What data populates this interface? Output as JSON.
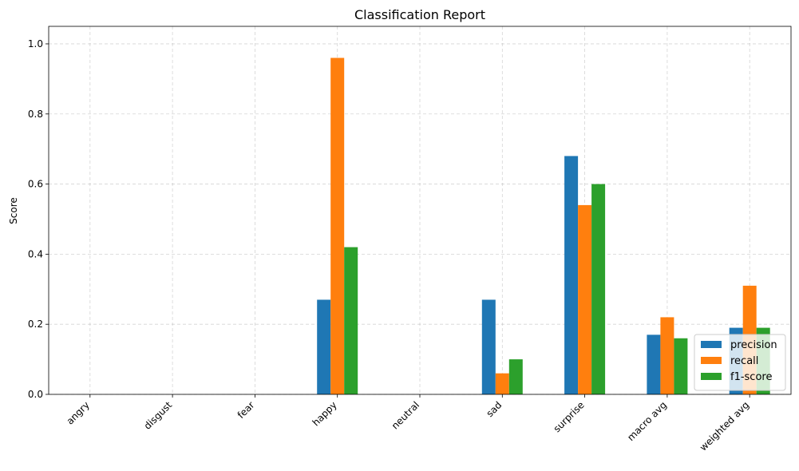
{
  "chart_data": {
    "type": "bar",
    "title": "Classification Report",
    "xlabel": "",
    "ylabel": "Score",
    "ylim": [
      0,
      1.05
    ],
    "yticks": [
      "0.0",
      "0.2",
      "0.4",
      "0.6",
      "0.8",
      "1.0"
    ],
    "grid": true,
    "legend_position": "lower-right",
    "categories": [
      "angry",
      "disgust",
      "fear",
      "happy",
      "neutral",
      "sad",
      "surprise",
      "macro avg",
      "weighted avg"
    ],
    "series": [
      {
        "name": "precision",
        "color": "#1f77b4",
        "values": [
          0,
          0,
          0,
          0.27,
          0,
          0.27,
          0.68,
          0.17,
          0.19
        ]
      },
      {
        "name": "recall",
        "color": "#ff7f0e",
        "values": [
          0,
          0,
          0,
          0.96,
          0,
          0.06,
          0.54,
          0.22,
          0.31
        ]
      },
      {
        "name": "f1-score",
        "color": "#2ca02c",
        "values": [
          0,
          0,
          0,
          0.42,
          0,
          0.1,
          0.6,
          0.16,
          0.19
        ]
      }
    ]
  }
}
